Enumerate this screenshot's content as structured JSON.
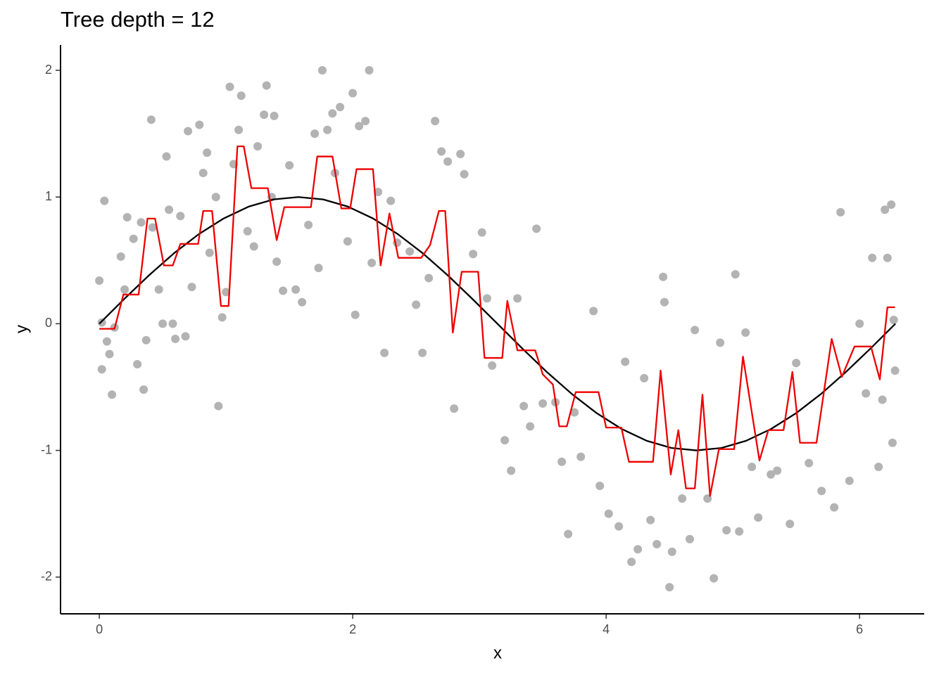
{
  "chart_data": {
    "type": "scatter",
    "title": "Tree depth = 12",
    "xlabel": "x",
    "ylabel": "y",
    "xlim": [
      -0.306,
      6.51
    ],
    "ylim": [
      -2.29,
      2.2
    ],
    "xticks": [
      0,
      2,
      4,
      6
    ],
    "yticks": [
      -2,
      -1,
      0,
      1,
      2
    ],
    "grid": false,
    "series": [
      {
        "type": "scatter",
        "color": "#b3b3b3",
        "x": [
          0,
          0.02,
          0.02,
          0.04,
          0.06,
          0.08,
          0.1,
          0.12,
          0.17,
          0.2,
          0.22,
          0.27,
          0.3,
          0.33,
          0.35,
          0.37,
          0.41,
          0.42,
          0.47,
          0.5,
          0.53,
          0.55,
          0.58,
          0.6,
          0.64,
          0.68,
          0.7,
          0.73,
          0.79,
          0.82,
          0.85,
          0.87,
          0.92,
          0.94,
          0.97,
          1.0,
          1.03,
          1.06,
          1.1,
          1.12,
          1.17,
          1.22,
          1.25,
          1.3,
          1.32,
          1.36,
          1.38,
          1.4,
          1.45,
          1.5,
          1.55,
          1.6,
          1.65,
          1.7,
          1.73,
          1.76,
          1.8,
          1.84,
          1.86,
          1.9,
          1.96,
          2.0,
          2.02,
          2.05,
          2.1,
          2.13,
          2.15,
          2.2,
          2.25,
          2.3,
          2.35,
          2.45,
          2.5,
          2.55,
          2.6,
          2.65,
          2.7,
          2.75,
          2.8,
          2.85,
          2.88,
          2.95,
          3.02,
          3.06,
          3.1,
          3.2,
          3.25,
          3.3,
          3.35,
          3.4,
          3.45,
          3.5,
          3.6,
          3.65,
          3.7,
          3.75,
          3.8,
          3.9,
          3.95,
          4.02,
          4.1,
          4.15,
          4.2,
          4.25,
          4.3,
          4.35,
          4.4,
          4.45,
          4.46,
          4.5,
          4.52,
          4.6,
          4.66,
          4.7,
          4.8,
          4.85,
          4.9,
          4.95,
          5.02,
          5.05,
          5.1,
          5.15,
          5.2,
          5.3,
          5.35,
          5.45,
          5.5,
          5.6,
          5.7,
          5.8,
          5.85,
          5.92,
          6.0,
          6.05,
          6.1,
          6.15,
          6.2,
          6.25,
          6.27,
          6.28,
          6.26,
          6.22,
          6.18
        ],
        "values": [
          0.34,
          0.01,
          -0.36,
          0.97,
          -0.14,
          -0.24,
          -0.56,
          -0.03,
          0.53,
          0.27,
          0.84,
          0.67,
          -0.32,
          0.8,
          -0.52,
          -0.13,
          1.61,
          0.76,
          0.27,
          0.0,
          1.32,
          0.9,
          0.0,
          -0.12,
          0.85,
          -0.1,
          1.52,
          0.29,
          1.57,
          1.19,
          1.35,
          0.56,
          1.0,
          -0.65,
          0.05,
          0.25,
          1.87,
          1.26,
          1.53,
          1.8,
          0.73,
          0.61,
          1.4,
          1.65,
          1.88,
          1.0,
          1.64,
          0.49,
          0.26,
          1.25,
          0.27,
          0.17,
          0.78,
          1.5,
          0.44,
          2.0,
          1.53,
          1.66,
          1.19,
          1.71,
          0.65,
          1.82,
          0.07,
          1.56,
          1.6,
          2.0,
          0.48,
          1.04,
          -0.23,
          0.97,
          0.64,
          0.57,
          0.15,
          -0.23,
          0.36,
          1.6,
          1.36,
          1.28,
          -0.67,
          1.34,
          1.18,
          0.55,
          0.72,
          0.2,
          -0.33,
          -0.92,
          -1.16,
          0.2,
          -0.65,
          -0.81,
          0.75,
          -0.63,
          -0.62,
          -1.09,
          -1.66,
          -0.7,
          -1.05,
          0.1,
          -1.28,
          -1.5,
          -1.6,
          -0.3,
          -1.88,
          -1.78,
          -0.43,
          -1.55,
          -1.74,
          0.37,
          0.17,
          -2.08,
          -1.8,
          -1.38,
          -1.7,
          -0.05,
          -1.38,
          -2.01,
          -0.15,
          -1.63,
          0.39,
          -1.64,
          -0.07,
          -1.13,
          -1.53,
          -1.19,
          -1.16,
          -1.58,
          -0.31,
          -1.1,
          -1.32,
          -1.45,
          0.88,
          -1.24,
          0.0,
          -0.55,
          0.52,
          -1.13,
          0.9,
          0.94,
          0.03,
          -0.37,
          -0.94,
          0.52,
          -0.6
        ]
      },
      {
        "type": "line",
        "color": "#000000",
        "x": [
          0,
          0.196,
          0.393,
          0.589,
          0.785,
          0.982,
          1.178,
          1.374,
          1.571,
          1.767,
          1.963,
          2.16,
          2.356,
          2.553,
          2.749,
          2.945,
          3.142,
          3.338,
          3.534,
          3.731,
          3.927,
          4.123,
          4.32,
          4.516,
          4.712,
          4.909,
          5.105,
          5.301,
          5.498,
          5.694,
          5.89,
          6.087,
          6.283
        ],
        "values": [
          0,
          0.195,
          0.383,
          0.556,
          0.707,
          0.831,
          0.924,
          0.981,
          1,
          0.981,
          0.924,
          0.831,
          0.707,
          0.556,
          0.383,
          0.195,
          0,
          -0.195,
          -0.383,
          -0.556,
          -0.707,
          -0.831,
          -0.924,
          -0.981,
          -1,
          -0.981,
          -0.924,
          -0.831,
          -0.707,
          -0.556,
          -0.383,
          -0.195,
          0
        ]
      },
      {
        "type": "line",
        "color": "#ee0000",
        "x": [
          0,
          0.12,
          0.19,
          0.31,
          0.38,
          0.44,
          0.51,
          0.58,
          0.64,
          0.78,
          0.82,
          0.89,
          0.96,
          1.02,
          1.09,
          1.14,
          1.2,
          1.33,
          1.4,
          1.46,
          1.67,
          1.72,
          1.84,
          1.91,
          1.98,
          2.03,
          2.16,
          2.22,
          2.29,
          2.36,
          2.54,
          2.61,
          2.68,
          2.73,
          2.79,
          2.86,
          2.99,
          3.04,
          3.18,
          3.22,
          3.3,
          3.44,
          3.5,
          3.58,
          3.63,
          3.69,
          3.76,
          3.94,
          4.0,
          4.12,
          4.18,
          4.37,
          4.43,
          4.51,
          4.57,
          4.63,
          4.7,
          4.76,
          4.82,
          4.89,
          5.01,
          5.08,
          5.21,
          5.28,
          5.4,
          5.47,
          5.53,
          5.66,
          5.78,
          5.86,
          5.96,
          6.09,
          6.16,
          6.22,
          6.28
        ],
        "values": [
          -0.04,
          -0.04,
          0.23,
          0.23,
          0.83,
          0.83,
          0.46,
          0.46,
          0.63,
          0.63,
          0.89,
          0.89,
          0.14,
          0.14,
          1.4,
          1.4,
          1.07,
          1.07,
          0.66,
          0.92,
          0.92,
          1.32,
          1.32,
          0.91,
          0.91,
          1.22,
          1.22,
          0.46,
          0.87,
          0.52,
          0.52,
          0.62,
          0.89,
          0.89,
          -0.07,
          0.41,
          0.41,
          -0.27,
          -0.27,
          0.18,
          -0.21,
          -0.21,
          -0.4,
          -0.48,
          -0.81,
          -0.81,
          -0.54,
          -0.54,
          -0.82,
          -0.82,
          -1.09,
          -1.09,
          -0.37,
          -1.19,
          -0.84,
          -1.3,
          -1.3,
          -0.56,
          -1.36,
          -0.99,
          -0.99,
          -0.26,
          -1.08,
          -0.84,
          -0.84,
          -0.38,
          -0.94,
          -0.94,
          -0.12,
          -0.42,
          -0.18,
          -0.18,
          -0.44,
          0.13,
          0.13
        ]
      }
    ]
  }
}
